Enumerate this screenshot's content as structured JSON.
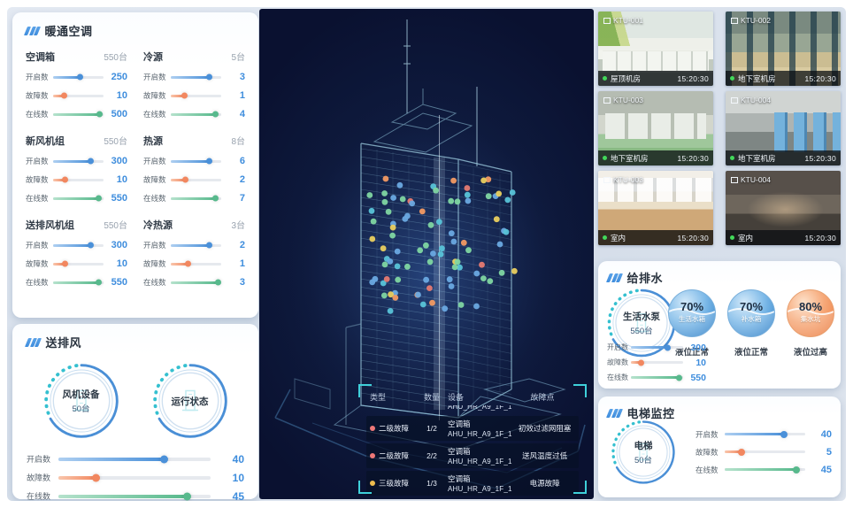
{
  "colors": {
    "accent_blue": "#3e8ddd",
    "bar_blue": "#4a90d9",
    "bar_orange": "#f2875f",
    "bar_green": "#57b98c",
    "gauge_dots_teal": "#35c0d0",
    "alarm_red": "#ee7878",
    "alarm_yellow": "#eebc4e",
    "camera_online_green": "#42d85a",
    "bracket_cyan": "#3fd0da"
  },
  "hvac": {
    "title": "暖通空调",
    "groups": [
      {
        "name": "空调箱",
        "total": "550台",
        "metrics": [
          {
            "label": "开启数",
            "value": "250",
            "pct": 55,
            "color": "blue"
          },
          {
            "label": "故障数",
            "value": "10",
            "pct": 22,
            "color": "orange"
          },
          {
            "label": "在线数",
            "value": "500",
            "pct": 93,
            "color": "green"
          }
        ]
      },
      {
        "name": "冷源",
        "total": "5台",
        "metrics": [
          {
            "label": "开启数",
            "value": "3",
            "pct": 78,
            "color": "blue"
          },
          {
            "label": "故障数",
            "value": "1",
            "pct": 28,
            "color": "orange"
          },
          {
            "label": "在线数",
            "value": "4",
            "pct": 90,
            "color": "green"
          }
        ]
      },
      {
        "name": "新风机组",
        "total": "550台",
        "metrics": [
          {
            "label": "开启数",
            "value": "300",
            "pct": 75,
            "color": "blue"
          },
          {
            "label": "故障数",
            "value": "10",
            "pct": 25,
            "color": "orange"
          },
          {
            "label": "在线数",
            "value": "550",
            "pct": 92,
            "color": "green"
          }
        ]
      },
      {
        "name": "热源",
        "total": "8台",
        "metrics": [
          {
            "label": "开启数",
            "value": "6",
            "pct": 78,
            "color": "blue"
          },
          {
            "label": "故障数",
            "value": "2",
            "pct": 30,
            "color": "orange"
          },
          {
            "label": "在线数",
            "value": "7",
            "pct": 90,
            "color": "green"
          }
        ]
      },
      {
        "name": "送排风机组",
        "total": "550台",
        "metrics": [
          {
            "label": "开启数",
            "value": "300",
            "pct": 75,
            "color": "blue"
          },
          {
            "label": "故障数",
            "value": "10",
            "pct": 25,
            "color": "orange"
          },
          {
            "label": "在线数",
            "value": "550",
            "pct": 92,
            "color": "green"
          }
        ]
      },
      {
        "name": "冷热源",
        "total": "3台",
        "metrics": [
          {
            "label": "开启数",
            "value": "2",
            "pct": 78,
            "color": "blue"
          },
          {
            "label": "故障数",
            "value": "1",
            "pct": 35,
            "color": "orange"
          },
          {
            "label": "在线数",
            "value": "3",
            "pct": 95,
            "color": "green"
          }
        ]
      }
    ]
  },
  "fan": {
    "title": "送排风",
    "gauge1": {
      "label": "风机设备",
      "sub": "50台"
    },
    "gauge2": {
      "label": "运行状态"
    },
    "metrics": [
      {
        "label": "开启数",
        "value": "40",
        "pct": 70,
        "color": "blue"
      },
      {
        "label": "故障数",
        "value": "10",
        "pct": 25,
        "color": "orange"
      },
      {
        "label": "在线数",
        "value": "45",
        "pct": 85,
        "color": "green"
      }
    ]
  },
  "center": {
    "table": {
      "headers": [
        "类型",
        "数量",
        "设备",
        "故障点"
      ],
      "partial_device": "AHU_HR_A9_1F_1",
      "rows": [
        {
          "level": "二级故障",
          "severity": "red",
          "count": "1/2",
          "device_type": "空调箱",
          "device_id": "AHU_HR_A9_1F_1",
          "fault": "初效过滤网阻塞"
        },
        {
          "level": "二级故障",
          "severity": "red",
          "count": "2/2",
          "device_type": "空调箱",
          "device_id": "AHU_HR_A9_1F_1",
          "fault": "送风温度过低"
        },
        {
          "level": "三级故障",
          "severity": "yellow",
          "count": "1/3",
          "device_type": "空调箱",
          "device_id": "AHU_HR_A9_1F_1",
          "fault": "电源故障"
        }
      ]
    }
  },
  "cameras": [
    {
      "id": "KTU-001",
      "location": "屋顶机房",
      "time": "15:20:30",
      "scene": "rooftop"
    },
    {
      "id": "KTU-002",
      "location": "地下室机房",
      "time": "15:20:30",
      "scene": "pumproom"
    },
    {
      "id": "KTU-003",
      "location": "地下室机房",
      "time": "15:20:30",
      "scene": "machineroom"
    },
    {
      "id": "KTU-004",
      "location": "地下室机房",
      "time": "15:20:30",
      "scene": "corridor"
    },
    {
      "id": "KTU-003",
      "location": "室内",
      "time": "15:20:30",
      "scene": "office-bright"
    },
    {
      "id": "KTU-004",
      "location": "室内",
      "time": "15:20:30",
      "scene": "office-dark"
    }
  ],
  "water": {
    "title": "给排水",
    "gauge": {
      "label": "生活水泵",
      "sub": "550台"
    },
    "tanks": [
      {
        "pct": "70%",
        "name": "生活水箱",
        "status": "液位正常",
        "color": "blue"
      },
      {
        "pct": "70%",
        "name": "补水箱",
        "status": "液位正常",
        "color": "blue"
      },
      {
        "pct": "80%",
        "name": "集水坑",
        "status": "液位过高",
        "color": "orange"
      }
    ],
    "metrics": [
      {
        "label": "开启数",
        "value": "300",
        "pct": 72,
        "color": "blue"
      },
      {
        "label": "故障数",
        "value": "10",
        "pct": 20,
        "color": "orange"
      },
      {
        "label": "在线数",
        "value": "550",
        "pct": 93,
        "color": "green"
      }
    ]
  },
  "elevator": {
    "title": "电梯监控",
    "gauge": {
      "label": "电梯",
      "sub": "50台"
    },
    "metrics": [
      {
        "label": "开启数",
        "value": "40",
        "pct": 75,
        "color": "blue"
      },
      {
        "label": "故障数",
        "value": "5",
        "pct": 22,
        "color": "orange"
      },
      {
        "label": "在线数",
        "value": "45",
        "pct": 90,
        "color": "green"
      }
    ]
  }
}
